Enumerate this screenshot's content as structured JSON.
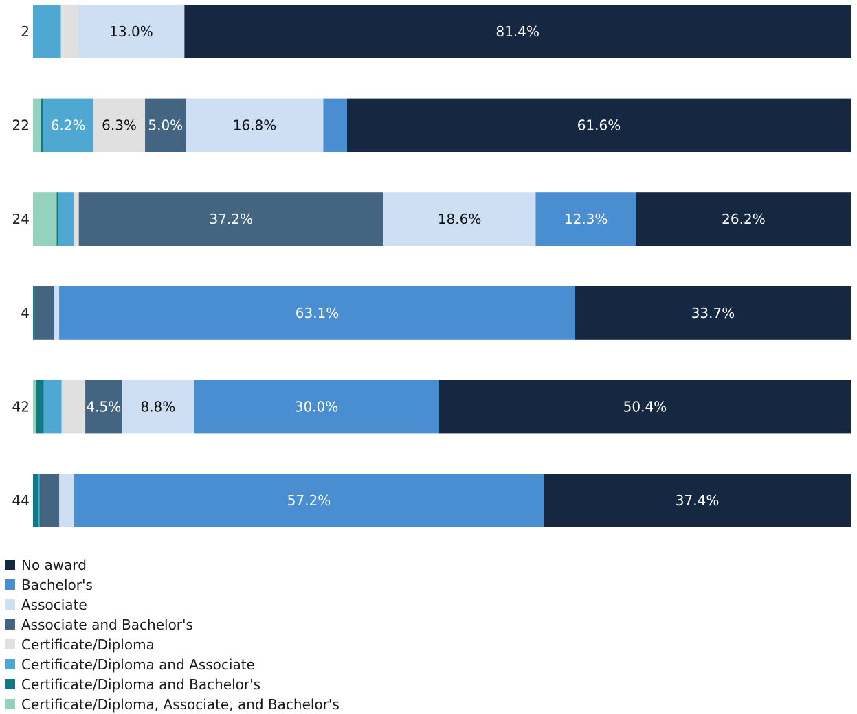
{
  "chart_data": {
    "type": "bar",
    "orientation": "horizontal",
    "stacked": true,
    "normalized_to": 100,
    "unit": "%",
    "categories": [
      "2",
      "22",
      "24",
      "4",
      "42",
      "44"
    ],
    "series": [
      {
        "name": "Certificate/Diploma, Associate, and Bachelor's",
        "color": "#94d2bd",
        "values": [
          0.0,
          1.0,
          2.9,
          0.0,
          0.4,
          0.0
        ],
        "labels": [
          null,
          null,
          null,
          null,
          null,
          null
        ]
      },
      {
        "name": "Certificate/Diploma and Bachelor's",
        "color": "#0f7a86",
        "values": [
          0.0,
          0.2,
          0.2,
          0.2,
          0.9,
          0.6
        ],
        "labels": [
          null,
          null,
          null,
          null,
          null,
          null
        ]
      },
      {
        "name": "Certificate/Diploma and Associate",
        "color": "#4ea8d2",
        "values": [
          3.4,
          6.2,
          1.9,
          0.0,
          2.2,
          0.2
        ],
        "labels": [
          null,
          "6.2%",
          null,
          null,
          null,
          null
        ]
      },
      {
        "name": "Certificate/Diploma",
        "color": "#e0e0e0",
        "values": [
          2.1,
          6.3,
          0.6,
          0.0,
          2.9,
          0.0
        ],
        "labels": [
          null,
          "6.3%",
          null,
          null,
          null,
          null
        ]
      },
      {
        "name": "Associate and Bachelor's",
        "color": "#446581",
        "values": [
          0.0,
          5.0,
          37.2,
          2.4,
          4.5,
          2.4
        ],
        "labels": [
          null,
          "5.0%",
          "37.2%",
          null,
          "4.5%",
          null
        ]
      },
      {
        "name": "Associate",
        "color": "#cfdff3",
        "values": [
          13.0,
          16.8,
          18.6,
          0.6,
          8.8,
          1.8
        ],
        "labels": [
          "13.0%",
          "16.8%",
          "18.6%",
          null,
          "8.8%",
          null
        ]
      },
      {
        "name": "Bachelor's",
        "color": "#4a8ed2",
        "values": [
          0.0,
          2.9,
          12.3,
          63.1,
          30.0,
          57.2
        ],
        "labels": [
          null,
          null,
          "12.3%",
          "63.1%",
          "30.0%",
          "57.2%"
        ]
      },
      {
        "name": "No award",
        "color": "#162741",
        "values": [
          81.4,
          61.6,
          26.2,
          33.7,
          50.4,
          37.4
        ],
        "labels": [
          "81.4%",
          "61.6%",
          "26.2%",
          "33.7%",
          "50.4%",
          "37.4%"
        ]
      }
    ],
    "title": "",
    "xlabel": "",
    "ylabel": "",
    "xlim": [
      0,
      100
    ],
    "grid": false,
    "legend_position": "bottom-left",
    "legend_order": [
      "No award",
      "Bachelor's",
      "Associate",
      "Associate and Bachelor's",
      "Certificate/Diploma",
      "Certificate/Diploma and Associate",
      "Certificate/Diploma and Bachelor's",
      "Certificate/Diploma, Associate, and Bachelor's"
    ]
  }
}
